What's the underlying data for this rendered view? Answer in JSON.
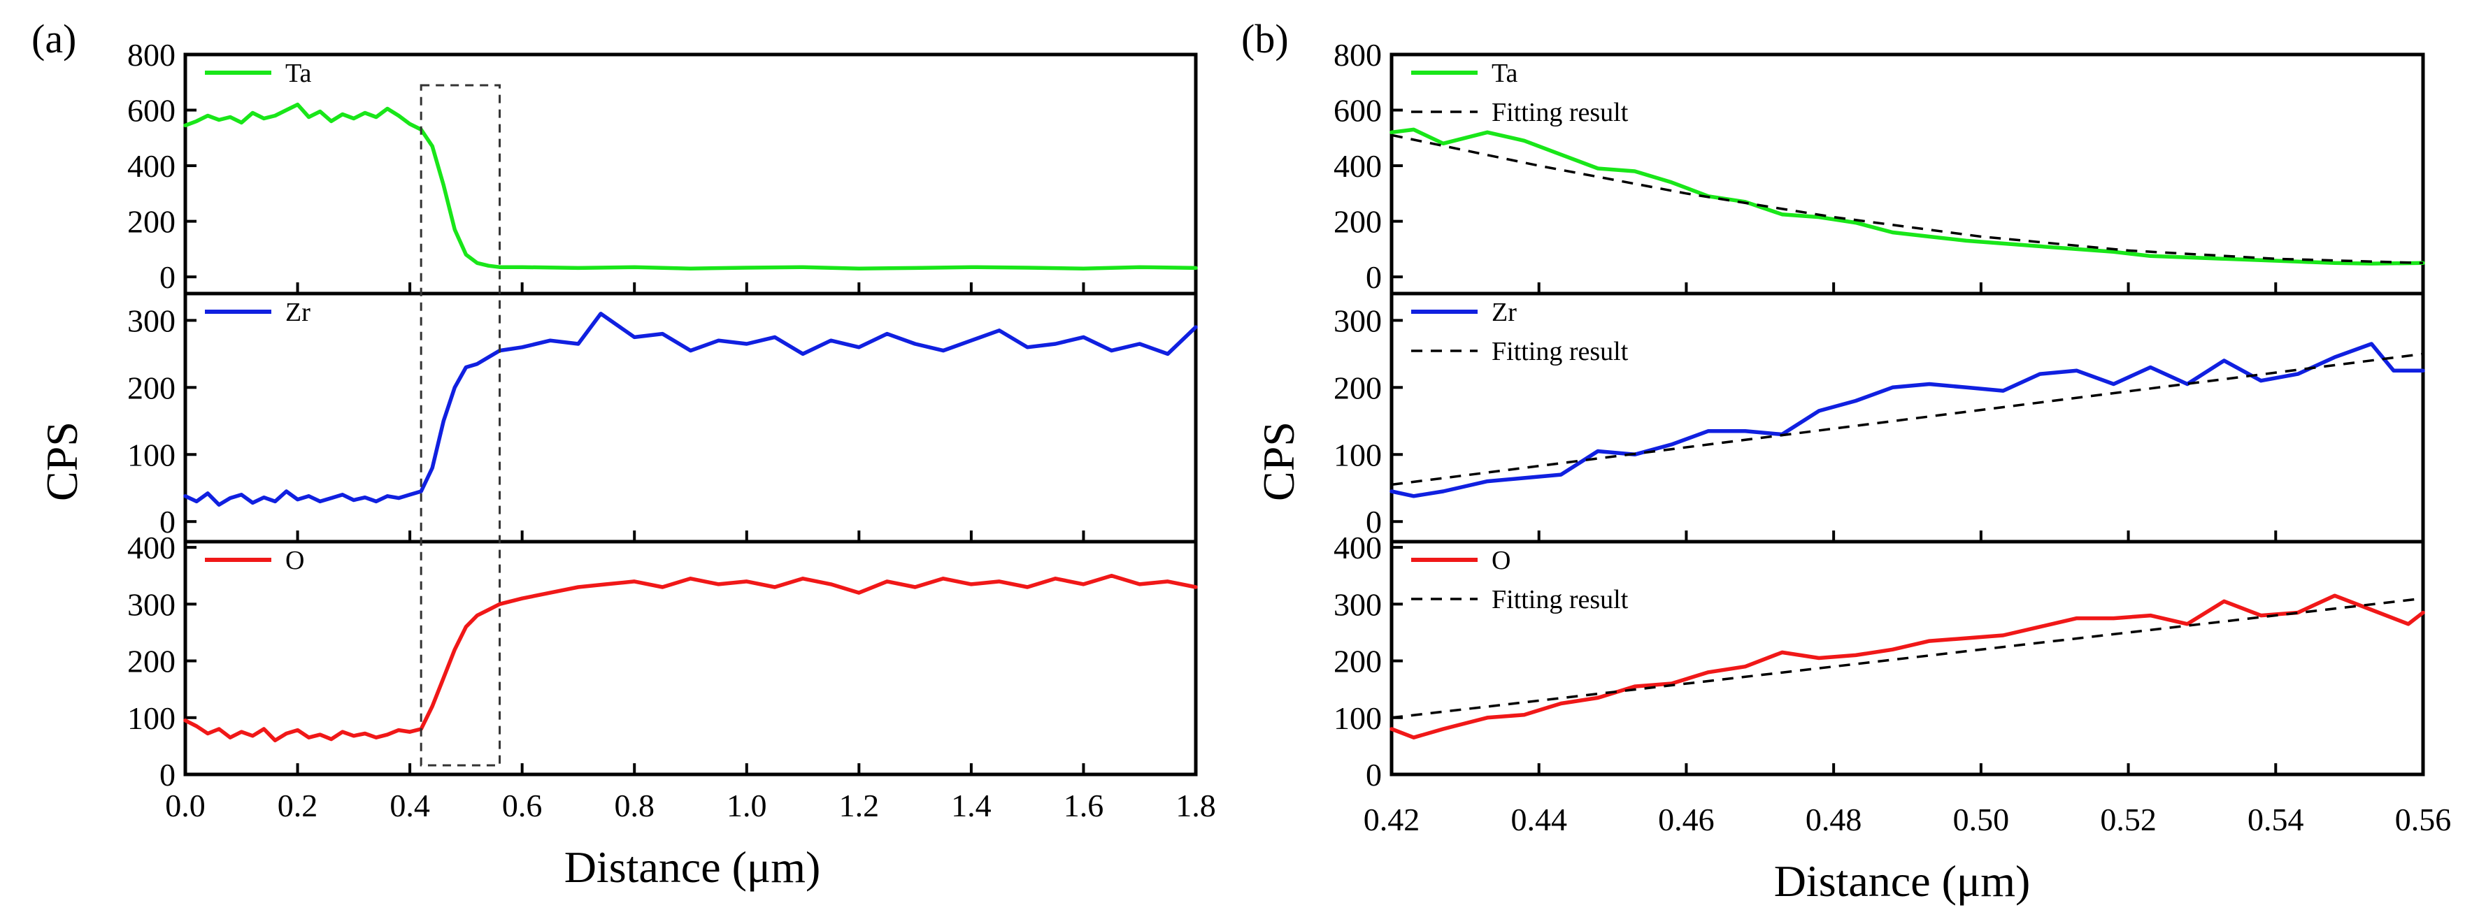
{
  "panel_a_label": "(a)",
  "panel_b_label": "(b)",
  "y_axis_label": "CPS",
  "x_axis_label": "Distance (μm)",
  "colors": {
    "Ta": "#19e619",
    "Zr": "#1020e0",
    "O": "#f01818",
    "fit": "#000000"
  },
  "chart_data": [
    {
      "type": "line",
      "title": "(a)",
      "xlabel": "Distance (μm)",
      "ylabel": "CPS",
      "xlim": [
        0,
        1.8
      ],
      "xticks": [
        "0.0",
        "0.2",
        "0.4",
        "0.6",
        "0.8",
        "1.0",
        "1.2",
        "1.4",
        "1.6",
        "1.8"
      ],
      "highlight_box": {
        "x_range": [
          0.42,
          0.56
        ]
      },
      "subplots": [
        {
          "legend": "Ta",
          "ylim": [
            -60,
            800
          ],
          "yticks": [
            0,
            200,
            400,
            600,
            800
          ],
          "series": [
            {
              "name": "Ta",
              "x": [
                0,
                0.02,
                0.04,
                0.06,
                0.08,
                0.1,
                0.12,
                0.14,
                0.16,
                0.18,
                0.2,
                0.22,
                0.24,
                0.26,
                0.28,
                0.3,
                0.32,
                0.34,
                0.36,
                0.38,
                0.4,
                0.42,
                0.44,
                0.46,
                0.48,
                0.5,
                0.52,
                0.54,
                0.56,
                0.6,
                0.7,
                0.8,
                0.9,
                1.0,
                1.1,
                1.2,
                1.3,
                1.4,
                1.5,
                1.6,
                1.7,
                1.8
              ],
              "y": [
                545,
                560,
                580,
                565,
                575,
                555,
                590,
                570,
                580,
                600,
                620,
                575,
                595,
                560,
                585,
                570,
                590,
                575,
                605,
                580,
                550,
                530,
                470,
                330,
                170,
                80,
                50,
                40,
                35,
                35,
                32,
                35,
                30,
                33,
                35,
                30,
                32,
                35,
                33,
                30,
                35,
                32
              ]
            }
          ]
        },
        {
          "legend": "Zr",
          "ylim": [
            -30,
            340
          ],
          "yticks": [
            0,
            100,
            200,
            300
          ],
          "series": [
            {
              "name": "Zr",
              "x": [
                0,
                0.02,
                0.04,
                0.06,
                0.08,
                0.1,
                0.12,
                0.14,
                0.16,
                0.18,
                0.2,
                0.22,
                0.24,
                0.26,
                0.28,
                0.3,
                0.32,
                0.34,
                0.36,
                0.38,
                0.4,
                0.42,
                0.44,
                0.46,
                0.48,
                0.5,
                0.52,
                0.54,
                0.56,
                0.6,
                0.65,
                0.7,
                0.74,
                0.8,
                0.85,
                0.9,
                0.95,
                1.0,
                1.05,
                1.1,
                1.15,
                1.2,
                1.25,
                1.3,
                1.35,
                1.4,
                1.45,
                1.5,
                1.55,
                1.6,
                1.65,
                1.7,
                1.75,
                1.8
              ],
              "y": [
                38,
                30,
                42,
                25,
                35,
                40,
                28,
                36,
                30,
                45,
                33,
                38,
                30,
                35,
                40,
                32,
                36,
                30,
                38,
                35,
                40,
                45,
                80,
                150,
                200,
                230,
                235,
                245,
                255,
                260,
                270,
                265,
                310,
                275,
                280,
                255,
                270,
                265,
                275,
                250,
                270,
                260,
                280,
                265,
                255,
                270,
                285,
                260,
                265,
                275,
                255,
                265,
                250,
                290
              ]
            }
          ]
        },
        {
          "legend": "O",
          "ylim": [
            0,
            410
          ],
          "yticks": [
            0,
            100,
            200,
            300,
            400
          ],
          "series": [
            {
              "name": "O",
              "x": [
                0,
                0.02,
                0.04,
                0.06,
                0.08,
                0.1,
                0.12,
                0.14,
                0.16,
                0.18,
                0.2,
                0.22,
                0.24,
                0.26,
                0.28,
                0.3,
                0.32,
                0.34,
                0.36,
                0.38,
                0.4,
                0.42,
                0.44,
                0.46,
                0.48,
                0.5,
                0.52,
                0.54,
                0.56,
                0.6,
                0.65,
                0.7,
                0.75,
                0.8,
                0.85,
                0.9,
                0.95,
                1.0,
                1.05,
                1.1,
                1.15,
                1.2,
                1.25,
                1.3,
                1.35,
                1.4,
                1.45,
                1.5,
                1.55,
                1.6,
                1.65,
                1.7,
                1.75,
                1.8
              ],
              "y": [
                95,
                85,
                72,
                80,
                65,
                75,
                68,
                80,
                60,
                72,
                78,
                65,
                70,
                62,
                75,
                68,
                72,
                65,
                70,
                78,
                75,
                80,
                120,
                170,
                220,
                260,
                280,
                290,
                300,
                310,
                320,
                330,
                335,
                340,
                330,
                345,
                335,
                340,
                330,
                345,
                335,
                320,
                340,
                330,
                345,
                335,
                340,
                330,
                345,
                335,
                350,
                335,
                340,
                330
              ]
            }
          ]
        }
      ]
    },
    {
      "type": "line",
      "title": "(b)",
      "xlabel": "Distance (μm)",
      "ylabel": "CPS",
      "xlim": [
        0.42,
        0.56
      ],
      "xticks": [
        "0.42",
        "0.44",
        "0.46",
        "0.48",
        "0.50",
        "0.52",
        "0.54",
        "0.56"
      ],
      "subplots": [
        {
          "legend": [
            "Ta",
            "Fitting result"
          ],
          "ylim": [
            -60,
            800
          ],
          "yticks": [
            0,
            200,
            400,
            600,
            800
          ],
          "series": [
            {
              "name": "Ta",
              "x": [
                0.42,
                0.423,
                0.427,
                0.433,
                0.438,
                0.443,
                0.448,
                0.453,
                0.458,
                0.463,
                0.468,
                0.473,
                0.478,
                0.483,
                0.488,
                0.493,
                0.498,
                0.503,
                0.508,
                0.513,
                0.518,
                0.523,
                0.528,
                0.533,
                0.538,
                0.543,
                0.548,
                0.553,
                0.56
              ],
              "y": [
                520,
                530,
                480,
                520,
                490,
                440,
                390,
                380,
                340,
                290,
                270,
                225,
                215,
                195,
                160,
                145,
                130,
                120,
                110,
                100,
                90,
                75,
                70,
                65,
                60,
                55,
                50,
                48,
                50
              ]
            },
            {
              "name": "Fitting result",
              "x": [
                0.42,
                0.44,
                0.46,
                0.48,
                0.5,
                0.52,
                0.54,
                0.56
              ],
              "y": [
                510,
                400,
                300,
                215,
                145,
                95,
                65,
                50
              ]
            }
          ]
        },
        {
          "legend": [
            "Zr",
            "Fitting result"
          ],
          "ylim": [
            -30,
            340
          ],
          "yticks": [
            0,
            100,
            200,
            300
          ],
          "series": [
            {
              "name": "Zr",
              "x": [
                0.42,
                0.423,
                0.427,
                0.433,
                0.438,
                0.443,
                0.448,
                0.453,
                0.458,
                0.463,
                0.468,
                0.473,
                0.478,
                0.483,
                0.488,
                0.493,
                0.498,
                0.503,
                0.508,
                0.513,
                0.518,
                0.523,
                0.528,
                0.533,
                0.538,
                0.543,
                0.548,
                0.553,
                0.556,
                0.56
              ],
              "y": [
                45,
                38,
                45,
                60,
                65,
                70,
                105,
                100,
                115,
                135,
                135,
                130,
                165,
                180,
                200,
                205,
                200,
                195,
                220,
                225,
                205,
                230,
                205,
                240,
                210,
                220,
                245,
                265,
                225,
                225
              ]
            },
            {
              "name": "Fitting result",
              "x": [
                0.42,
                0.56
              ],
              "y": [
                55,
                250
              ]
            }
          ]
        },
        {
          "legend": [
            "O",
            "Fitting result"
          ],
          "ylim": [
            0,
            410
          ],
          "yticks": [
            0,
            100,
            200,
            300,
            400
          ],
          "series": [
            {
              "name": "O",
              "x": [
                0.42,
                0.423,
                0.427,
                0.433,
                0.438,
                0.443,
                0.448,
                0.453,
                0.458,
                0.463,
                0.468,
                0.473,
                0.478,
                0.483,
                0.488,
                0.493,
                0.498,
                0.503,
                0.508,
                0.513,
                0.518,
                0.523,
                0.528,
                0.533,
                0.538,
                0.543,
                0.548,
                0.553,
                0.558,
                0.56
              ],
              "y": [
                80,
                65,
                80,
                100,
                105,
                125,
                135,
                155,
                160,
                180,
                190,
                215,
                205,
                210,
                220,
                235,
                240,
                245,
                260,
                275,
                275,
                280,
                265,
                305,
                280,
                285,
                315,
                290,
                265,
                285
              ]
            },
            {
              "name": "Fitting result",
              "x": [
                0.42,
                0.56
              ],
              "y": [
                100,
                310
              ]
            }
          ]
        }
      ]
    }
  ]
}
